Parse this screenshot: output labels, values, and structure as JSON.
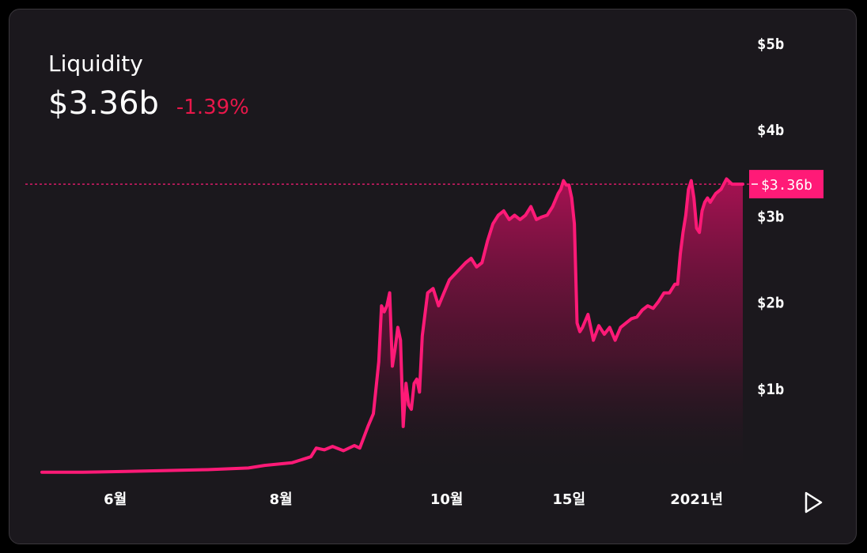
{
  "header": {
    "title": "Liquidity",
    "current_value": "$3.36b",
    "change": "-1.39%"
  },
  "colors": {
    "line": "#ff1a77",
    "negative": "#e8174a",
    "background": "#1b181d",
    "label_bg": "#ff1a77"
  },
  "controls": {
    "play_icon": "play-icon"
  },
  "chart_data": {
    "type": "area",
    "title": "Liquidity",
    "xlabel": "",
    "ylabel": "",
    "ylim": [
      0,
      5
    ],
    "y_unit": "$ billions",
    "grid": false,
    "x_ticks": [
      {
        "label": "6월",
        "x": "2020-06-01"
      },
      {
        "label": "8월",
        "x": "2020-08-01"
      },
      {
        "label": "10월",
        "x": "2020-10-01"
      },
      {
        "label": "15일",
        "x": "2020-11-15"
      },
      {
        "label": "2021년",
        "x": "2021-01-01"
      }
    ],
    "y_ticks": [
      {
        "label": "$1b",
        "value": 1
      },
      {
        "label": "$2b",
        "value": 2
      },
      {
        "label": "$3b",
        "value": 3
      },
      {
        "label": "$4b",
        "value": 4
      },
      {
        "label": "$5b",
        "value": 5
      }
    ],
    "current_label": "$3.36b",
    "current_value": 3.36,
    "series": [
      {
        "x": [
          "2020-05-05",
          "2020-05-20",
          "2020-06-05",
          "2020-06-20",
          "2020-07-05",
          "2020-07-20",
          "2020-07-26",
          "2020-08-05",
          "2020-08-12",
          "2020-08-14",
          "2020-08-17",
          "2020-08-20",
          "2020-08-24",
          "2020-08-28",
          "2020-08-30",
          "2020-09-02",
          "2020-09-04",
          "2020-09-06",
          "2020-09-07",
          "2020-09-08",
          "2020-09-09",
          "2020-09-10",
          "2020-09-11",
          "2020-09-12",
          "2020-09-13",
          "2020-09-14",
          "2020-09-15",
          "2020-09-16",
          "2020-09-17",
          "2020-09-18",
          "2020-09-19",
          "2020-09-20",
          "2020-09-21",
          "2020-09-22",
          "2020-09-24",
          "2020-09-26",
          "2020-09-28",
          "2020-09-30",
          "2020-10-02",
          "2020-10-05",
          "2020-10-08",
          "2020-10-10",
          "2020-10-12",
          "2020-10-14",
          "2020-10-16",
          "2020-10-18",
          "2020-10-20",
          "2020-10-22",
          "2020-10-24",
          "2020-10-26",
          "2020-10-28",
          "2020-10-30",
          "2020-11-01",
          "2020-11-03",
          "2020-11-05",
          "2020-11-07",
          "2020-11-09",
          "2020-11-11",
          "2020-11-12",
          "2020-11-13",
          "2020-11-14",
          "2020-11-15",
          "2020-11-16",
          "2020-11-17",
          "2020-11-18",
          "2020-11-19",
          "2020-11-20",
          "2020-11-22",
          "2020-11-24",
          "2020-11-26",
          "2020-11-28",
          "2020-11-30",
          "2020-12-02",
          "2020-12-04",
          "2020-12-06",
          "2020-12-08",
          "2020-12-10",
          "2020-12-12",
          "2020-12-14",
          "2020-12-16",
          "2020-12-18",
          "2020-12-20",
          "2020-12-22",
          "2020-12-24",
          "2020-12-25",
          "2020-12-26",
          "2020-12-27",
          "2020-12-28",
          "2020-12-29",
          "2020-12-30",
          "2020-12-31",
          "2021-01-01",
          "2021-01-02",
          "2021-01-03",
          "2021-01-04",
          "2021-01-05",
          "2021-01-06",
          "2021-01-08",
          "2021-01-10",
          "2021-01-12",
          "2021-01-14",
          "2021-01-16",
          "2021-01-18"
        ],
        "values": [
          0.02,
          0.02,
          0.03,
          0.04,
          0.05,
          0.07,
          0.1,
          0.13,
          0.2,
          0.3,
          0.28,
          0.32,
          0.27,
          0.33,
          0.3,
          0.55,
          0.7,
          1.3,
          1.95,
          1.88,
          1.95,
          2.1,
          1.25,
          1.45,
          1.7,
          1.55,
          0.55,
          1.05,
          0.8,
          0.75,
          1.05,
          1.1,
          0.95,
          1.6,
          2.1,
          2.15,
          1.95,
          2.1,
          2.25,
          2.35,
          2.45,
          2.5,
          2.4,
          2.45,
          2.7,
          2.9,
          3.0,
          3.05,
          2.95,
          3.0,
          2.95,
          3.0,
          3.1,
          2.95,
          2.98,
          3.0,
          3.1,
          3.25,
          3.3,
          3.4,
          3.35,
          3.35,
          3.2,
          2.9,
          1.75,
          1.65,
          1.7,
          1.85,
          1.55,
          1.72,
          1.62,
          1.7,
          1.55,
          1.7,
          1.75,
          1.8,
          1.82,
          1.9,
          1.95,
          1.92,
          2.0,
          2.1,
          2.1,
          2.2,
          2.2,
          2.55,
          2.8,
          3.0,
          3.3,
          3.4,
          3.2,
          2.85,
          2.8,
          3.05,
          3.15,
          3.2,
          3.15,
          3.25,
          3.3,
          3.42,
          3.36,
          3.36,
          3.36
        ]
      }
    ]
  }
}
